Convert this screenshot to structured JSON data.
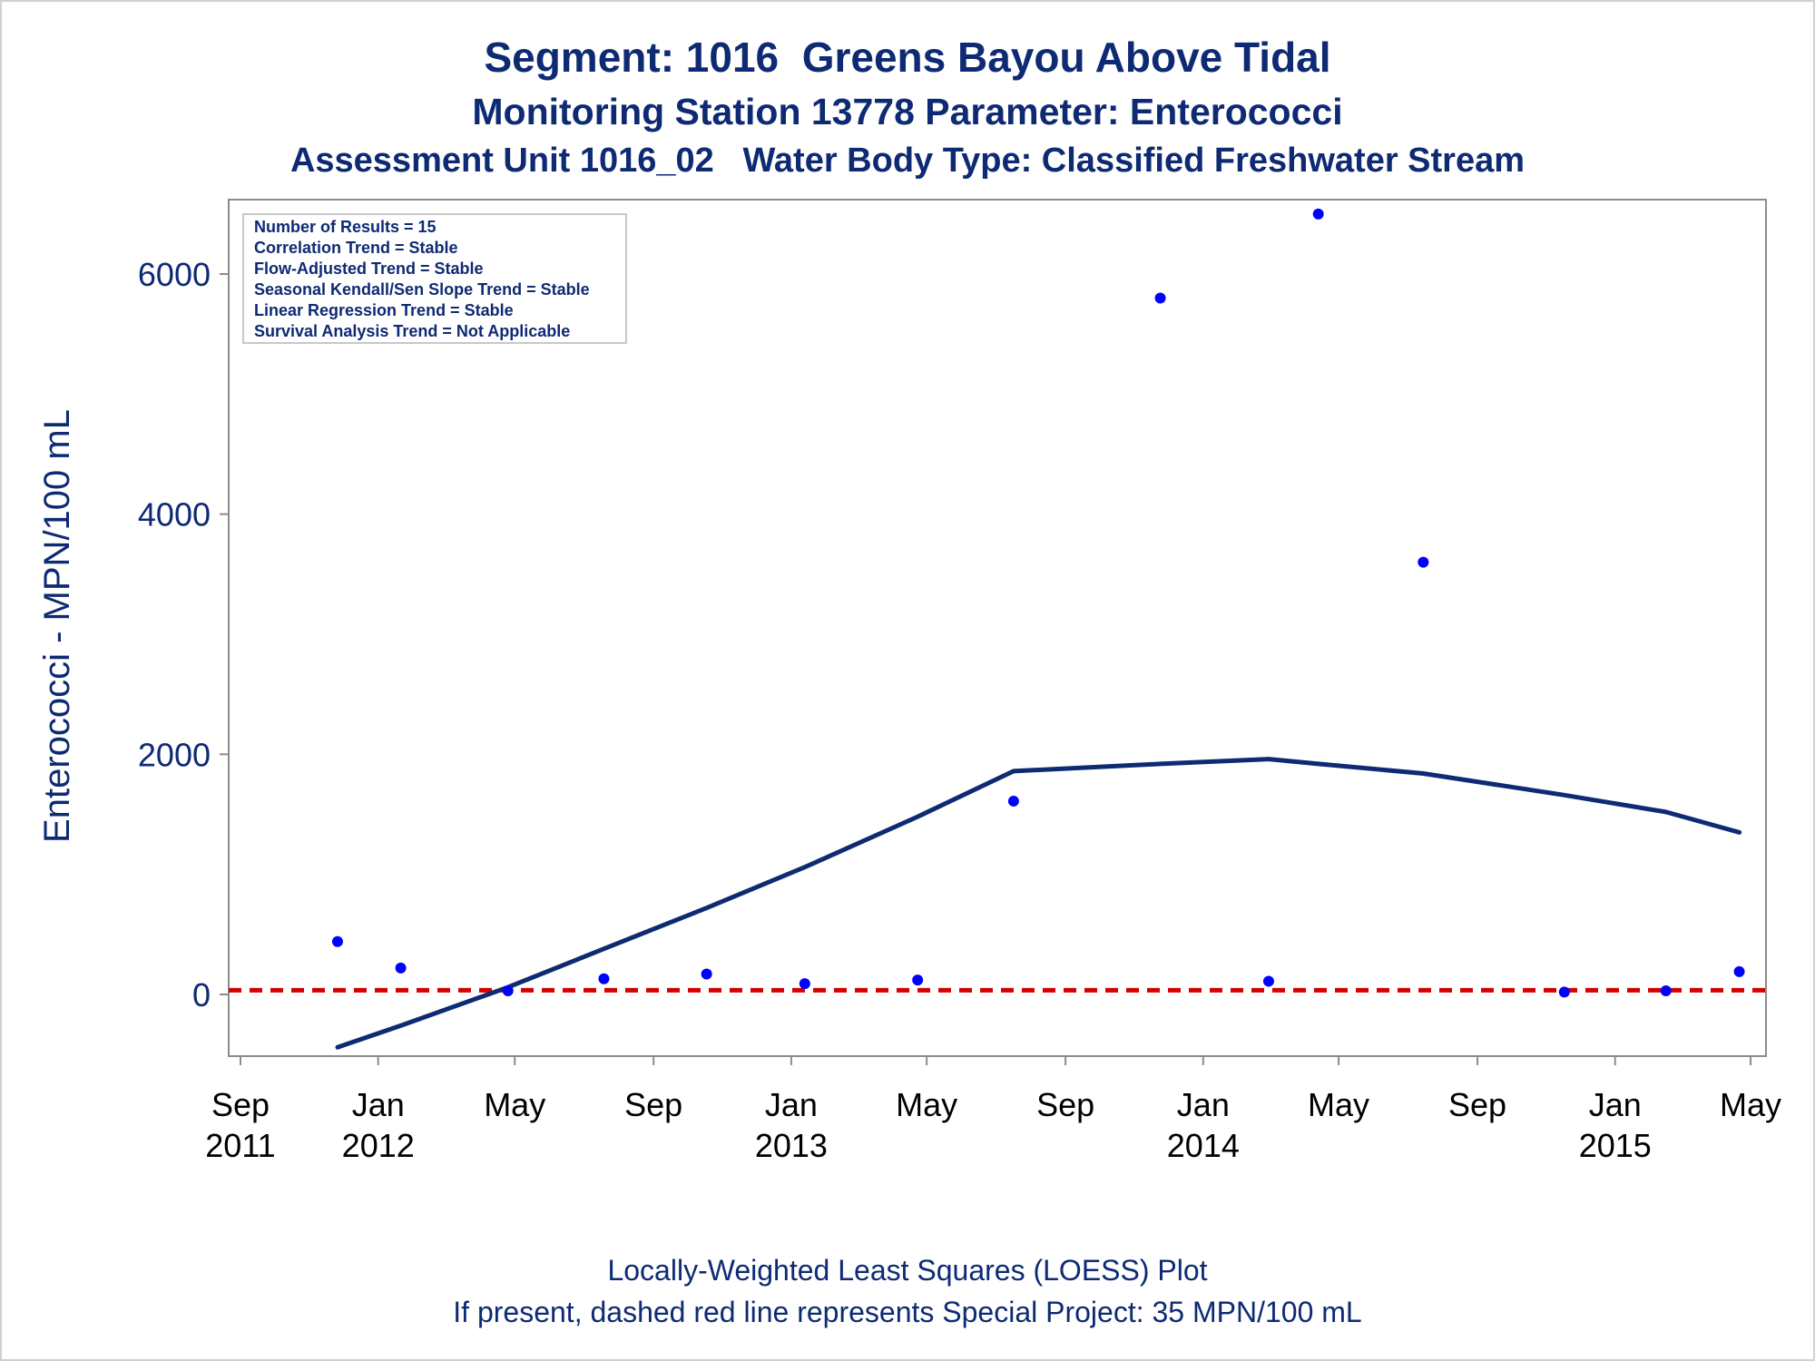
{
  "chart_data": {
    "type": "scatter",
    "title": "Segment: 1016  Greens Bayou Above Tidal",
    "subtitle": "Monitoring Station 13778 Parameter: Enterococci",
    "subtitle2": "Assessment Unit 1016_02   Water Body Type: Classified Freshwater Stream",
    "ylabel": "Enterococci - MPN/100 mL",
    "xlabel": "",
    "ylim": [
      -520,
      6600
    ],
    "yticks": [
      0,
      2000,
      4000,
      6000
    ],
    "ytick_labels": [
      "0",
      "2000",
      "4000",
      "6000"
    ],
    "xlim": [
      "2011-09-01",
      "2015-05-01"
    ],
    "xticks": [
      "2011-09-01",
      "2012-01-01",
      "2012-05-01",
      "2012-09-01",
      "2013-01-01",
      "2013-05-01",
      "2013-09-01",
      "2014-01-01",
      "2014-05-01",
      "2014-09-01",
      "2015-01-01",
      "2015-05-01"
    ],
    "xtick_labels": [
      [
        "Sep",
        "2011"
      ],
      [
        "Jan",
        "2012"
      ],
      [
        "May",
        ""
      ],
      [
        "Sep",
        ""
      ],
      [
        "Jan",
        "2013"
      ],
      [
        "May",
        ""
      ],
      [
        "Sep",
        ""
      ],
      [
        "Jan",
        "2014"
      ],
      [
        "May",
        ""
      ],
      [
        "Sep",
        ""
      ],
      [
        "Jan",
        "2015"
      ],
      [
        "May",
        ""
      ]
    ],
    "points": [
      {
        "x": "2011-11-26",
        "y": 440
      },
      {
        "x": "2012-01-21",
        "y": 220
      },
      {
        "x": "2012-04-25",
        "y": 30
      },
      {
        "x": "2012-07-19",
        "y": 130
      },
      {
        "x": "2012-10-18",
        "y": 170
      },
      {
        "x": "2013-01-13",
        "y": 90
      },
      {
        "x": "2013-04-23",
        "y": 120
      },
      {
        "x": "2013-07-17",
        "y": 1610
      },
      {
        "x": "2013-11-24",
        "y": 5800
      },
      {
        "x": "2014-02-28",
        "y": 110
      },
      {
        "x": "2014-04-13",
        "y": 6500
      },
      {
        "x": "2014-07-15",
        "y": 3600
      },
      {
        "x": "2014-11-17",
        "y": 20
      },
      {
        "x": "2015-02-15",
        "y": 30
      },
      {
        "x": "2015-04-21",
        "y": 190
      }
    ],
    "loess": [
      {
        "x": "2011-11-26",
        "y": -440
      },
      {
        "x": "2012-01-21",
        "y": -260
      },
      {
        "x": "2012-04-25",
        "y": 60
      },
      {
        "x": "2012-07-19",
        "y": 380
      },
      {
        "x": "2012-10-18",
        "y": 720
      },
      {
        "x": "2013-01-13",
        "y": 1060
      },
      {
        "x": "2013-04-23",
        "y": 1480
      },
      {
        "x": "2013-07-17",
        "y": 1860
      },
      {
        "x": "2013-11-24",
        "y": 1920
      },
      {
        "x": "2014-02-28",
        "y": 1960
      },
      {
        "x": "2014-04-13",
        "y": 1920
      },
      {
        "x": "2014-07-15",
        "y": 1840
      },
      {
        "x": "2014-11-17",
        "y": 1660
      },
      {
        "x": "2015-02-15",
        "y": 1520
      },
      {
        "x": "2015-04-21",
        "y": 1350
      }
    ],
    "reference_line": {
      "y": 35,
      "style": "dashed",
      "color": "#d40000"
    },
    "point_color": "#0000ff",
    "line_color": "#0d2a73",
    "grid": false,
    "inset_box": {
      "placement": "top-left",
      "lines": [
        "Number of Results = 15",
        "Correlation Trend = Stable",
        "Flow-Adjusted Trend = Stable",
        "Seasonal Kendall/Sen Slope Trend = Stable",
        "Linear Regression Trend = Stable",
        "Survival Analysis Trend = Not Applicable"
      ]
    },
    "footnotes": [
      "Locally-Weighted Least Squares (LOESS) Plot",
      "If present, dashed red line represents Special Project: 35 MPN/100 mL"
    ]
  }
}
